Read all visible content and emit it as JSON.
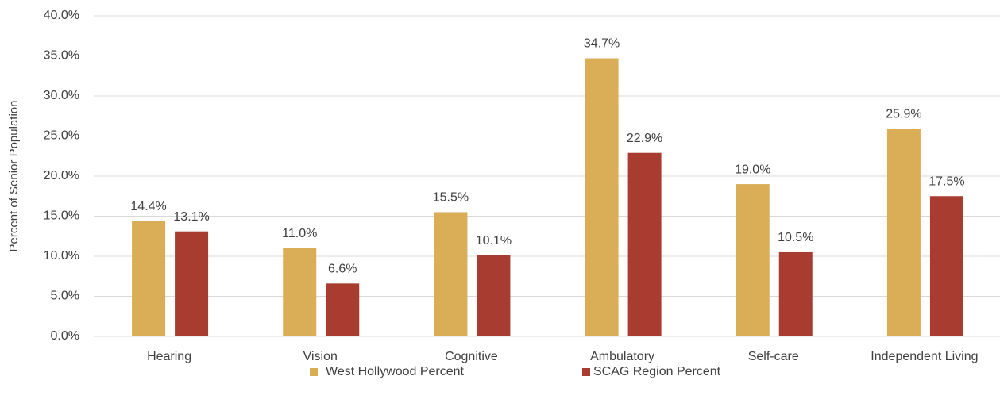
{
  "chart_data": {
    "type": "bar",
    "y_label": "Percent of Senior Population",
    "categories": [
      "Hearing",
      "Vision",
      "Cognitive",
      "Ambulatory",
      "Self-care",
      "Independent Living"
    ],
    "series": [
      {
        "name": "West Hollywood Percent",
        "color": "#d9ae57",
        "values": [
          14.4,
          11.0,
          15.5,
          34.7,
          19.0,
          25.9
        ],
        "value_labels": [
          "14.4%",
          "11.0%",
          "15.5%",
          "34.7%",
          "19.0%",
          "25.9%"
        ]
      },
      {
        "name": "SCAG Region Percent",
        "color": "#a93c30",
        "values": [
          13.1,
          6.6,
          10.1,
          22.9,
          10.5,
          17.5
        ],
        "value_labels": [
          "13.1%",
          "6.6%",
          "10.1%",
          "22.9%",
          "10.5%",
          "17.5%"
        ]
      }
    ],
    "ylim": [
      0,
      40
    ],
    "yticks": [
      {
        "value": 0,
        "label": "0.0%"
      },
      {
        "value": 5,
        "label": "5.0%"
      },
      {
        "value": 10,
        "label": "10.0%"
      },
      {
        "value": 15,
        "label": "15.0%"
      },
      {
        "value": 20,
        "label": "20.0%"
      },
      {
        "value": 25,
        "label": "25.0%"
      },
      {
        "value": 30,
        "label": "30.0%"
      },
      {
        "value": 35,
        "label": "35.0%"
      },
      {
        "value": 40,
        "label": "40.0%"
      }
    ],
    "grid": true,
    "legend": "bottom"
  }
}
